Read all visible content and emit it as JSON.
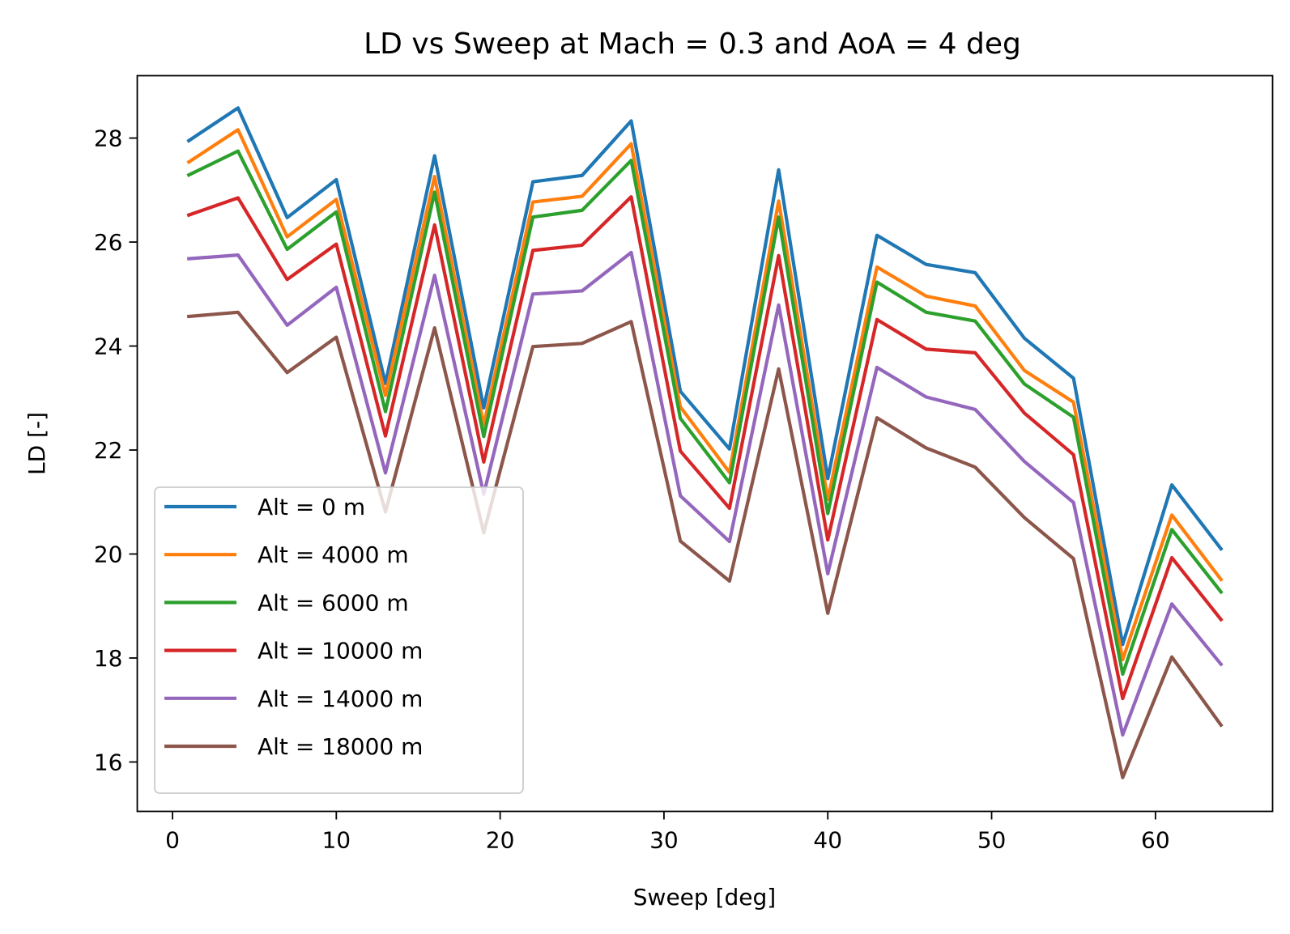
{
  "chart_data": {
    "type": "line",
    "title": "LD vs Sweep at Mach = 0.3 and AoA = 4 deg",
    "xlabel": "Sweep [deg]",
    "ylabel": "LD [-]",
    "xlim": [
      -2.15,
      67.15
    ],
    "ylim": [
      15.05,
      29.2
    ],
    "xticks": [
      0,
      10,
      20,
      30,
      40,
      50,
      60
    ],
    "yticks": [
      16,
      18,
      20,
      22,
      24,
      26,
      28
    ],
    "grid": false,
    "legend": "lower-left",
    "x": [
      1,
      4,
      7,
      10,
      13,
      16,
      19,
      22,
      25,
      28,
      31,
      34,
      37,
      40,
      43,
      46,
      49,
      52,
      55,
      58,
      61,
      64
    ],
    "series": [
      {
        "name": "Alt = 0 m",
        "color": "#1f77b4",
        "values": [
          27.95,
          28.58,
          26.47,
          27.2,
          23.28,
          27.66,
          22.81,
          27.16,
          27.28,
          28.33,
          23.13,
          22.02,
          27.39,
          21.45,
          26.13,
          25.57,
          25.41,
          24.15,
          23.38,
          18.26,
          21.33,
          20.1
        ]
      },
      {
        "name": "Alt = 4000 m",
        "color": "#ff7f0e",
        "values": [
          27.54,
          28.16,
          26.1,
          26.82,
          23.05,
          27.26,
          22.48,
          26.77,
          26.88,
          27.89,
          22.83,
          21.57,
          26.79,
          21.05,
          25.52,
          24.96,
          24.77,
          23.53,
          22.92,
          17.97,
          20.75,
          19.51
        ]
      },
      {
        "name": "Alt = 6000 m",
        "color": "#2ca02c",
        "values": [
          27.29,
          27.75,
          25.86,
          26.58,
          22.74,
          26.96,
          22.26,
          26.48,
          26.61,
          27.57,
          22.61,
          21.37,
          26.48,
          20.78,
          25.23,
          24.65,
          24.48,
          23.27,
          22.63,
          17.69,
          20.47,
          19.27
        ]
      },
      {
        "name": "Alt = 10000 m",
        "color": "#d62728",
        "values": [
          26.52,
          26.85,
          25.28,
          25.96,
          22.27,
          26.33,
          21.77,
          25.84,
          25.94,
          26.87,
          21.98,
          20.88,
          25.74,
          20.27,
          24.51,
          23.94,
          23.87,
          22.71,
          21.91,
          17.22,
          19.93,
          18.74
        ]
      },
      {
        "name": "Alt = 14000 m",
        "color": "#9467bd",
        "values": [
          25.68,
          25.75,
          24.4,
          25.13,
          21.56,
          25.36,
          21.15,
          25.0,
          25.06,
          25.8,
          21.12,
          20.24,
          24.79,
          19.62,
          23.59,
          23.02,
          22.78,
          21.78,
          20.99,
          16.52,
          19.04,
          17.88
        ]
      },
      {
        "name": "Alt = 18000 m",
        "color": "#8c564b",
        "values": [
          24.57,
          24.65,
          23.49,
          24.17,
          20.81,
          24.35,
          20.41,
          23.99,
          24.05,
          24.47,
          20.25,
          19.48,
          23.56,
          18.86,
          22.62,
          22.04,
          21.67,
          20.7,
          19.91,
          15.7,
          18.02,
          16.71
        ]
      }
    ]
  }
}
